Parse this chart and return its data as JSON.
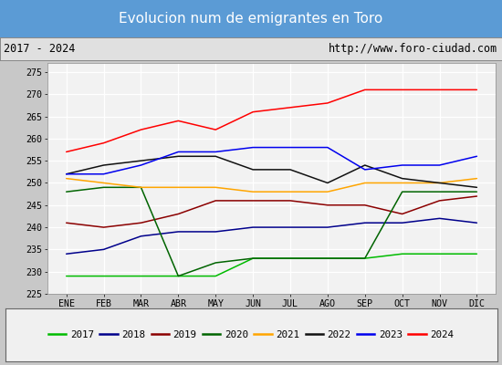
{
  "title": "Evolucion num de emigrantes en Toro",
  "subtitle_left": "2017 - 2024",
  "subtitle_right": "http://www.foro-ciudad.com",
  "title_bg_color": "#5b9bd5",
  "title_text_color": "#ffffff",
  "months": [
    "ENE",
    "FEB",
    "MAR",
    "ABR",
    "MAY",
    "JUN",
    "JUL",
    "AGO",
    "SEP",
    "OCT",
    "NOV",
    "DIC"
  ],
  "ylim": [
    225,
    277
  ],
  "yticks": [
    225,
    230,
    235,
    240,
    245,
    250,
    255,
    260,
    265,
    270,
    275
  ],
  "series": {
    "2017": {
      "color": "#00bb00",
      "values": [
        229,
        229,
        229,
        229,
        229,
        233,
        233,
        233,
        233,
        234,
        234,
        234
      ]
    },
    "2018": {
      "color": "#00008b",
      "values": [
        234,
        235,
        238,
        239,
        239,
        240,
        240,
        240,
        241,
        241,
        242,
        241
      ]
    },
    "2019": {
      "color": "#8b0000",
      "values": [
        241,
        240,
        241,
        243,
        246,
        246,
        246,
        245,
        245,
        243,
        246,
        247
      ]
    },
    "2020": {
      "color": "#006400",
      "values": [
        248,
        249,
        249,
        229,
        232,
        233,
        233,
        233,
        233,
        248,
        248,
        248
      ]
    },
    "2021": {
      "color": "#ffa500",
      "values": [
        251,
        250,
        249,
        249,
        249,
        248,
        248,
        248,
        250,
        250,
        250,
        251
      ]
    },
    "2022": {
      "color": "#111111",
      "values": [
        252,
        254,
        255,
        256,
        256,
        253,
        253,
        250,
        254,
        251,
        250,
        249
      ]
    },
    "2023": {
      "color": "#0000ee",
      "values": [
        252,
        252,
        254,
        257,
        257,
        258,
        258,
        258,
        253,
        254,
        254,
        256
      ]
    },
    "2024": {
      "color": "#ff0000",
      "values": [
        257,
        259,
        262,
        264,
        262,
        266,
        267,
        268,
        271,
        271,
        271,
        271
      ]
    }
  },
  "legend_order": [
    "2017",
    "2018",
    "2019",
    "2020",
    "2021",
    "2022",
    "2023",
    "2024"
  ],
  "bg_plot_color": "#f2f2f2",
  "grid_color": "#ffffff",
  "fig_bg_color": "#c8c8c8",
  "subtitle_bg_color": "#e0e0e0",
  "legend_bg_color": "#f0f0f0"
}
